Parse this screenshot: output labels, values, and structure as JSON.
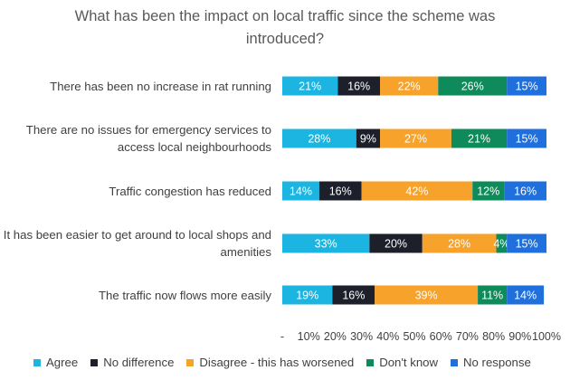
{
  "chart_data": {
    "type": "bar",
    "orientation": "horizontal",
    "stacked": true,
    "title": "What has been the impact on local traffic since the scheme was introduced?",
    "title_lines": [
      "What has been the impact on local traffic since the scheme was",
      "introduced?"
    ],
    "categories": [
      "There has been no increase in rat running",
      "There are no issues for emergency services to access local neighbourhoods",
      "Traffic congestion has reduced",
      "It has been easier to get around to local shops and amenities",
      "The traffic now flows more easily"
    ],
    "category_lines": [
      [
        "There has been no increase in rat running"
      ],
      [
        "There are no issues for emergency services to",
        "access local neighbourhoods"
      ],
      [
        "Traffic congestion has reduced"
      ],
      [
        "It has been easier to get around to local shops and",
        "amenities"
      ],
      [
        "The traffic now flows more easily"
      ]
    ],
    "series": [
      {
        "name": "Agree",
        "color": "#1cb4e0",
        "values": [
          21,
          28,
          14,
          33,
          19
        ]
      },
      {
        "name": "No difference",
        "color": "#1d1f2b",
        "values": [
          16,
          9,
          16,
          20,
          16
        ]
      },
      {
        "name": "Disagree - this has worsened",
        "color": "#f7a22a",
        "values": [
          22,
          27,
          42,
          28,
          39
        ]
      },
      {
        "name": "Don't know",
        "color": "#0f8a5a",
        "values": [
          26,
          21,
          12,
          4,
          11
        ]
      },
      {
        "name": "No response",
        "color": "#1f6fdc",
        "values": [
          15,
          15,
          16,
          15,
          14
        ]
      }
    ],
    "x_ticks": [
      "-",
      "10%",
      "20%",
      "30%",
      "40%",
      "50%",
      "60%",
      "70%",
      "80%",
      "90%",
      "100%"
    ],
    "xlim": [
      0,
      100
    ],
    "grid": false,
    "legend_position": "bottom"
  }
}
